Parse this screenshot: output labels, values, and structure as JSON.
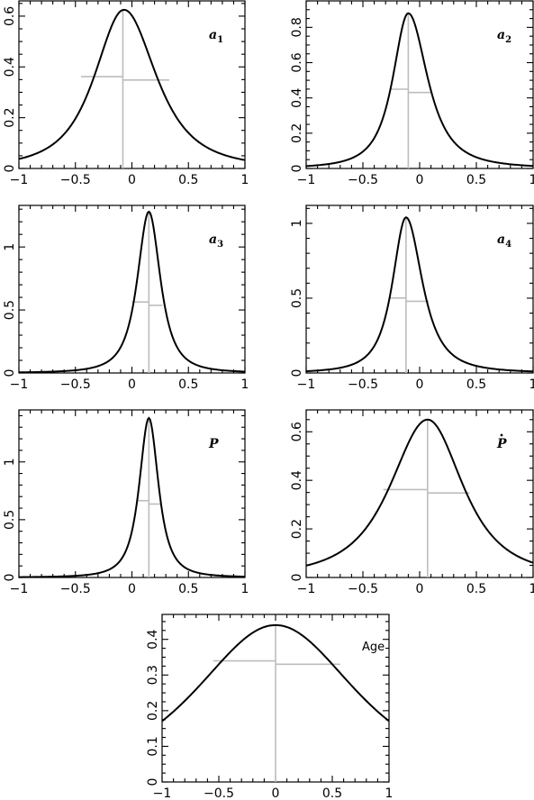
{
  "chart_data": [
    {
      "type": "line",
      "label": "a",
      "sub": "1",
      "x_ticks": [
        "−1",
        "−0.5",
        "0",
        "0.5",
        "1"
      ],
      "xlim": [
        -1,
        1
      ],
      "ylim": [
        0,
        0.66
      ],
      "y_ticks": [
        {
          "v": 0,
          "t": "0"
        },
        {
          "v": 0.2,
          "t": "0.2"
        },
        {
          "v": 0.4,
          "t": "0.4"
        },
        {
          "v": 0.6,
          "t": "0.6"
        }
      ],
      "series": [
        {
          "peak_x": -0.07,
          "peak_y": 0.625,
          "left_width": 0.31,
          "right_width": 0.34,
          "tail_power": 1.7
        }
      ],
      "median_x": -0.08,
      "half_height": 0.355,
      "hw_left": -0.45,
      "hw_right": 0.33
    },
    {
      "type": "line",
      "label": "a",
      "sub": "2",
      "x_ticks": [
        "−1",
        "−0.5",
        "0",
        "0.5",
        "1"
      ],
      "xlim": [
        -1,
        1
      ],
      "ylim": [
        0,
        0.95
      ],
      "y_ticks": [
        {
          "v": 0,
          "t": "0"
        },
        {
          "v": 0.2,
          "t": "0.2"
        },
        {
          "v": 0.4,
          "t": "0.4"
        },
        {
          "v": 0.6,
          "t": "0.6"
        },
        {
          "v": 0.8,
          "t": "0.8"
        }
      ],
      "series": [
        {
          "peak_x": -0.1,
          "peak_y": 0.88,
          "left_width": 0.16,
          "right_width": 0.2,
          "tail_power": 1.5
        }
      ],
      "median_x": -0.1,
      "half_height": 0.44,
      "hw_left": -0.26,
      "hw_right": 0.1
    },
    {
      "type": "line",
      "label": "a",
      "sub": "3",
      "x_ticks": [
        "−1",
        "−0.5",
        "0",
        "0.5",
        "1"
      ],
      "xlim": [
        -1,
        1
      ],
      "ylim": [
        0,
        1.33
      ],
      "y_ticks": [
        {
          "v": 0,
          "t": "0"
        },
        {
          "v": 0.5,
          "t": "0.5"
        },
        {
          "v": 1,
          "t": "1"
        }
      ],
      "series": [
        {
          "peak_x": 0.15,
          "peak_y": 1.28,
          "left_width": 0.12,
          "right_width": 0.12,
          "tail_power": 1.5
        }
      ],
      "median_x": 0.15,
      "half_height": 0.55,
      "hw_left": 0.0,
      "hw_right": 0.27
    },
    {
      "type": "line",
      "label": "a",
      "sub": "4",
      "x_ticks": [
        "−1",
        "−0.5",
        "0",
        "0.5",
        "1"
      ],
      "xlim": [
        -1,
        1
      ],
      "ylim": [
        0,
        1.12
      ],
      "y_ticks": [
        {
          "v": 0,
          "t": "0"
        },
        {
          "v": 0.5,
          "t": "0.5"
        },
        {
          "v": 1,
          "t": "1"
        }
      ],
      "series": [
        {
          "peak_x": -0.12,
          "peak_y": 1.04,
          "left_width": 0.14,
          "right_width": 0.17,
          "tail_power": 1.5
        }
      ],
      "median_x": -0.12,
      "half_height": 0.49,
      "hw_left": -0.26,
      "hw_right": 0.08
    },
    {
      "type": "line",
      "label": "P",
      "sub": "",
      "x_ticks": [
        "−1",
        "−0.5",
        "0",
        "0.5",
        "1"
      ],
      "xlim": [
        -1,
        1
      ],
      "ylim": [
        0,
        1.45
      ],
      "y_ticks": [
        {
          "v": 0,
          "t": "0"
        },
        {
          "v": 0.5,
          "t": "0.5"
        },
        {
          "v": 1,
          "t": "1"
        }
      ],
      "series": [
        {
          "peak_x": 0.15,
          "peak_y": 1.38,
          "left_width": 0.1,
          "right_width": 0.1,
          "tail_power": 1.5
        }
      ],
      "median_x": 0.15,
      "half_height": 0.65,
      "hw_left": 0.05,
      "hw_right": 0.25
    },
    {
      "type": "line",
      "label": "P",
      "sub": "",
      "dot": true,
      "x_ticks": [
        "−1",
        "−0.5",
        "0",
        "0.5",
        "1"
      ],
      "xlim": [
        -1,
        1
      ],
      "ylim": [
        0,
        0.69
      ],
      "y_ticks": [
        {
          "v": 0,
          "t": "0"
        },
        {
          "v": 0.2,
          "t": "0.2"
        },
        {
          "v": 0.4,
          "t": "0.4"
        },
        {
          "v": 0.6,
          "t": "0.6"
        }
      ],
      "series": [
        {
          "peak_x": 0.07,
          "peak_y": 0.65,
          "left_width": 0.39,
          "right_width": 0.37,
          "tail_power": 1.7
        }
      ],
      "median_x": 0.07,
      "half_height": 0.355,
      "hw_left": -0.32,
      "hw_right": 0.44
    },
    {
      "type": "line",
      "label": "Age",
      "sub": "",
      "plain": true,
      "x_ticks": [
        "−1",
        "−0.5",
        "0",
        "0.5",
        "1"
      ],
      "xlim": [
        -1,
        1
      ],
      "ylim": [
        0,
        0.47
      ],
      "y_ticks": [
        {
          "v": 0,
          "t": "0"
        },
        {
          "v": 0.1,
          "t": "0.1"
        },
        {
          "v": 0.2,
          "t": "0.2"
        },
        {
          "v": 0.3,
          "t": "0.3"
        },
        {
          "v": 0.4,
          "t": "0.4"
        }
      ],
      "series": [
        {
          "peak_x": 0.0,
          "peak_y": 0.44,
          "left_width": 0.85,
          "right_width": 0.85,
          "tail_power": 2.0
        }
      ],
      "median_x": 0.0,
      "half_height": 0.335,
      "hw_left": -0.55,
      "hw_right": 0.57
    }
  ]
}
